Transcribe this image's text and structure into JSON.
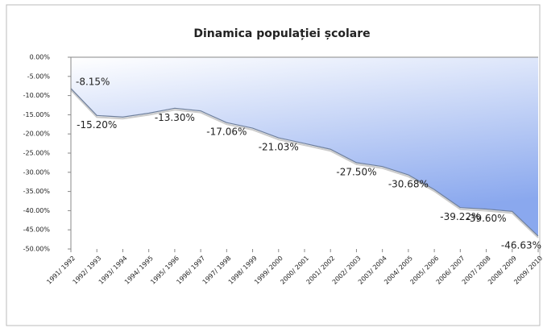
{
  "chart_data": {
    "type": "area",
    "title": "Dinamica populației școlare",
    "categories": [
      "1991/ 1992",
      "1992/ 1993",
      "1993/ 1994",
      "1994/ 1995",
      "1995/ 1996",
      "1996/ 1997",
      "1997/ 1998",
      "1998/ 1999",
      "1999/ 2000",
      "2000/ 2001",
      "2001/ 2002",
      "2002/ 2003",
      "2003/ 2004",
      "2004/ 2005",
      "2005/ 2006",
      "2006/ 2007",
      "2007/ 2008",
      "2008/ 2009",
      "2009/ 2010"
    ],
    "values": [
      -8.15,
      -15.2,
      -15.6,
      -14.6,
      -13.3,
      -14.0,
      -17.06,
      -18.5,
      -21.03,
      -22.5,
      -24.0,
      -27.5,
      -28.5,
      -30.68,
      -34.5,
      -39.22,
      -39.6,
      -40.2,
      -46.63
    ],
    "value_labels": [
      "-8.15%",
      "-15.20%",
      null,
      null,
      "-13.30%",
      null,
      "-17.06%",
      null,
      "-21.03%",
      null,
      null,
      "-27.50%",
      null,
      "-30.68%",
      null,
      "-39.22%",
      "-39.60%",
      null,
      "-46.63%"
    ],
    "color": "#8aa8ee",
    "ylim": [
      -50,
      0
    ],
    "yticks": [
      {
        "value": 0,
        "label": "0.00%"
      },
      {
        "value": -5,
        "label": "-5.00%"
      },
      {
        "value": -10,
        "label": "-10.00%"
      },
      {
        "value": -15,
        "label": "-15.00%"
      },
      {
        "value": -20,
        "label": "-20.00%"
      },
      {
        "value": -25,
        "label": "-25.00%"
      },
      {
        "value": -30,
        "label": "-30.00%"
      },
      {
        "value": -35,
        "label": "-35.00%"
      },
      {
        "value": -40,
        "label": "-40.00%"
      },
      {
        "value": -45,
        "label": "-45.00%"
      },
      {
        "value": -50,
        "label": "-50.00%"
      }
    ]
  }
}
